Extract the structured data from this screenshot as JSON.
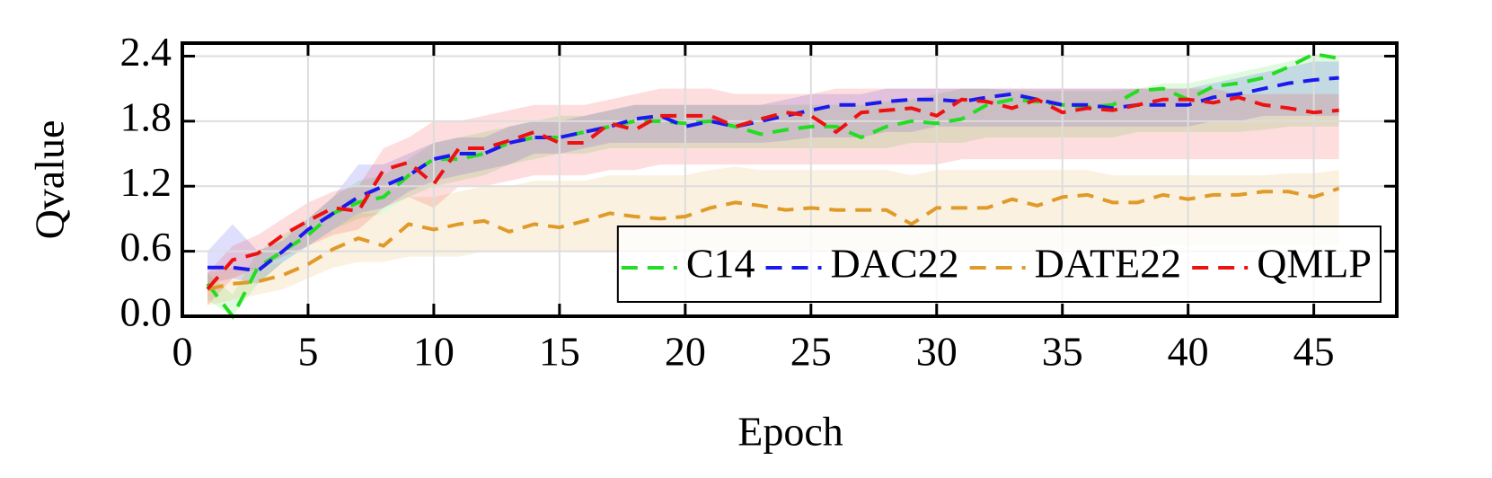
{
  "chart_data": {
    "type": "line",
    "x_label": "Epoch",
    "y_label": "Qvalue",
    "x": [
      1,
      2,
      3,
      4,
      5,
      6,
      7,
      8,
      9,
      10,
      11,
      12,
      13,
      14,
      15,
      16,
      17,
      18,
      19,
      20,
      21,
      22,
      23,
      24,
      25,
      26,
      27,
      28,
      29,
      30,
      31,
      32,
      33,
      34,
      35,
      36,
      37,
      38,
      39,
      40,
      41,
      42,
      43,
      44,
      45,
      46
    ],
    "xlim": [
      0,
      48.3
    ],
    "ylim": [
      0,
      2.52
    ],
    "xticks": [
      0,
      5,
      10,
      15,
      20,
      25,
      30,
      35,
      40,
      45
    ],
    "yticks": [
      {
        "value": 0,
        "label": "0.0"
      },
      0.6,
      1.2,
      1.8,
      2.4
    ],
    "grid": true,
    "legend": "lower right",
    "series": [
      {
        "name": "C14",
        "color": "#22dd22",
        "values": [
          0.3,
          0.0,
          0.45,
          0.6,
          0.75,
          0.95,
          1.05,
          1.1,
          1.3,
          1.45,
          1.45,
          1.5,
          1.6,
          1.65,
          1.65,
          1.7,
          1.75,
          1.8,
          1.8,
          1.78,
          1.8,
          1.75,
          1.68,
          1.72,
          1.75,
          1.75,
          1.65,
          1.75,
          1.8,
          1.78,
          1.82,
          1.95,
          2.0,
          1.98,
          1.95,
          1.93,
          1.95,
          2.08,
          2.1,
          2.0,
          2.12,
          2.15,
          2.2,
          2.3,
          2.42,
          2.38
        ],
        "lower": [
          0.15,
          0.0,
          0.3,
          0.5,
          0.65,
          0.8,
          0.9,
          0.95,
          1.1,
          1.2,
          1.25,
          1.3,
          1.4,
          1.45,
          1.5,
          1.5,
          1.55,
          1.55,
          1.55,
          1.55,
          1.55,
          1.55,
          1.55,
          1.55,
          1.55,
          1.55,
          1.55,
          1.55,
          1.6,
          1.6,
          1.6,
          1.65,
          1.65,
          1.65,
          1.65,
          1.65,
          1.65,
          1.7,
          1.7,
          1.7,
          1.7,
          1.7,
          1.72,
          1.75,
          1.75,
          1.75
        ],
        "upper": [
          0.4,
          0.2,
          0.6,
          0.75,
          0.9,
          1.1,
          1.25,
          1.3,
          1.45,
          1.6,
          1.65,
          1.7,
          1.75,
          1.8,
          1.85,
          1.85,
          1.9,
          1.95,
          1.95,
          1.95,
          1.95,
          1.95,
          1.95,
          1.95,
          1.95,
          1.95,
          1.95,
          1.98,
          2.0,
          2.05,
          2.1,
          2.1,
          2.08,
          2.08,
          2.08,
          2.08,
          2.08,
          2.1,
          2.15,
          2.15,
          2.2,
          2.25,
          2.3,
          2.35,
          2.42,
          2.4
        ]
      },
      {
        "name": "DAC22",
        "color": "#1a1aee",
        "values": [
          0.45,
          0.45,
          0.42,
          0.6,
          0.8,
          0.95,
          1.1,
          1.2,
          1.3,
          1.45,
          1.5,
          1.5,
          1.6,
          1.65,
          1.65,
          1.7,
          1.75,
          1.82,
          1.85,
          1.75,
          1.8,
          1.75,
          1.8,
          1.85,
          1.9,
          1.95,
          1.95,
          1.98,
          2.0,
          2.0,
          1.98,
          2.02,
          2.05,
          2.0,
          1.95,
          1.95,
          1.92,
          1.95,
          1.95,
          1.95,
          2.02,
          2.05,
          2.1,
          2.15,
          2.18,
          2.2
        ],
        "lower": [
          0.3,
          0.35,
          0.3,
          0.5,
          0.65,
          0.8,
          0.95,
          1.0,
          1.15,
          1.25,
          1.3,
          1.35,
          1.4,
          1.5,
          1.5,
          1.55,
          1.6,
          1.6,
          1.6,
          1.6,
          1.6,
          1.6,
          1.6,
          1.62,
          1.65,
          1.65,
          1.65,
          1.7,
          1.7,
          1.75,
          1.75,
          1.75,
          1.75,
          1.75,
          1.75,
          1.75,
          1.75,
          1.75,
          1.75,
          1.75,
          1.8,
          1.8,
          1.85,
          1.85,
          1.85,
          1.85
        ],
        "upper": [
          0.6,
          0.85,
          0.6,
          0.7,
          0.9,
          1.1,
          1.4,
          1.4,
          1.5,
          1.6,
          1.65,
          1.65,
          1.75,
          1.8,
          1.8,
          1.85,
          1.9,
          1.95,
          1.95,
          1.95,
          1.95,
          1.95,
          1.95,
          2.0,
          2.05,
          2.05,
          2.05,
          2.1,
          2.1,
          2.1,
          2.1,
          2.1,
          2.1,
          2.1,
          2.1,
          2.1,
          2.1,
          2.1,
          2.1,
          2.1,
          2.15,
          2.2,
          2.25,
          2.3,
          2.35,
          2.35
        ]
      },
      {
        "name": "DATE22",
        "color": "#e09a28",
        "values": [
          0.25,
          0.3,
          0.32,
          0.38,
          0.48,
          0.62,
          0.72,
          0.65,
          0.85,
          0.8,
          0.85,
          0.88,
          0.78,
          0.85,
          0.82,
          0.88,
          0.95,
          0.92,
          0.9,
          0.92,
          1.0,
          1.05,
          1.02,
          0.98,
          1.0,
          0.98,
          0.98,
          0.98,
          0.85,
          1.0,
          1.0,
          1.0,
          1.08,
          1.02,
          1.1,
          1.12,
          1.05,
          1.05,
          1.12,
          1.08,
          1.12,
          1.12,
          1.15,
          1.15,
          1.1,
          1.18
        ],
        "lower": [
          0.1,
          0.15,
          0.2,
          0.25,
          0.35,
          0.45,
          0.5,
          0.5,
          0.55,
          0.55,
          0.55,
          0.6,
          0.6,
          0.6,
          0.6,
          0.6,
          0.6,
          0.6,
          0.6,
          0.6,
          0.6,
          0.6,
          0.6,
          0.6,
          0.6,
          0.6,
          0.6,
          0.6,
          0.6,
          0.6,
          0.6,
          0.6,
          0.6,
          0.6,
          0.62,
          0.62,
          0.62,
          0.62,
          0.65,
          0.65,
          0.65,
          0.65,
          0.65,
          0.65,
          0.65,
          0.65
        ],
        "upper": [
          0.4,
          0.45,
          0.45,
          0.5,
          0.65,
          0.8,
          0.95,
          0.95,
          1.1,
          1.1,
          1.15,
          1.2,
          1.2,
          1.25,
          1.25,
          1.25,
          1.3,
          1.3,
          1.3,
          1.3,
          1.35,
          1.38,
          1.35,
          1.35,
          1.35,
          1.35,
          1.35,
          1.35,
          1.3,
          1.35,
          1.35,
          1.35,
          1.35,
          1.35,
          1.35,
          1.35,
          1.3,
          1.3,
          1.3,
          1.3,
          1.3,
          1.3,
          1.3,
          1.32,
          1.32,
          1.35
        ]
      },
      {
        "name": "QMLP",
        "color": "#ee1111",
        "values": [
          0.25,
          0.52,
          0.58,
          0.75,
          0.88,
          1.0,
          0.97,
          1.35,
          1.42,
          1.22,
          1.55,
          1.55,
          1.62,
          1.7,
          1.6,
          1.6,
          1.78,
          1.72,
          1.85,
          1.85,
          1.85,
          1.75,
          1.82,
          1.88,
          1.85,
          1.7,
          1.88,
          1.9,
          1.92,
          1.85,
          2.0,
          1.98,
          1.92,
          2.0,
          1.88,
          1.92,
          1.9,
          1.95,
          2.0,
          2.0,
          1.97,
          2.02,
          1.95,
          1.92,
          1.88,
          1.9
        ],
        "lower": [
          0.1,
          0.35,
          0.45,
          0.55,
          0.65,
          0.75,
          0.8,
          1.0,
          1.1,
          1.0,
          1.2,
          1.2,
          1.25,
          1.3,
          1.3,
          1.3,
          1.35,
          1.35,
          1.4,
          1.4,
          1.4,
          1.4,
          1.4,
          1.4,
          1.4,
          1.4,
          1.4,
          1.4,
          1.4,
          1.4,
          1.45,
          1.45,
          1.45,
          1.45,
          1.45,
          1.45,
          1.45,
          1.45,
          1.45,
          1.45,
          1.45,
          1.45,
          1.45,
          1.45,
          1.45,
          1.45
        ],
        "upper": [
          0.4,
          0.65,
          0.75,
          0.9,
          1.05,
          1.15,
          1.2,
          1.55,
          1.65,
          1.8,
          1.8,
          1.85,
          1.9,
          1.95,
          1.95,
          1.95,
          2.0,
          2.05,
          2.1,
          2.1,
          2.1,
          2.05,
          2.05,
          2.05,
          2.05,
          2.1,
          2.1,
          2.1,
          2.1,
          2.1,
          2.1,
          2.1,
          2.1,
          2.1,
          2.1,
          2.1,
          2.1,
          2.1,
          2.1,
          2.1,
          2.1,
          2.05,
          2.05,
          2.05,
          2.05,
          2.05
        ]
      }
    ]
  }
}
